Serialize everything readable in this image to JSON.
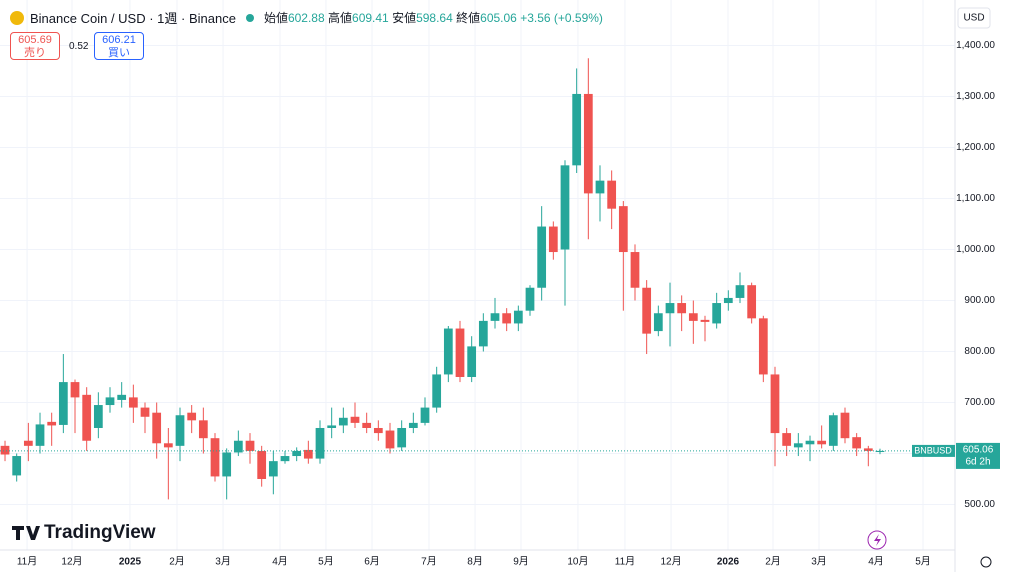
{
  "chart_data": {
    "type": "candlestick",
    "title": "Binance Coin / USD · 1週 · Binance",
    "ohlc_labels": [
      "始値",
      "高値",
      "安値",
      "終値"
    ],
    "change_label": "+3.56 (+0.59%)",
    "sell_price": 605.69,
    "sell_label": "売り",
    "spread": 0.52,
    "buy_price": 606.21,
    "buy_label": "買い",
    "currency": "USD",
    "symbol_tag": "BNBUSD",
    "countdown": "6d 2h",
    "watermark": "TradingView",
    "up_color": "#26a69a",
    "down_color": "#ef5350",
    "grid": true,
    "open": [
      615,
      557,
      625,
      615,
      662,
      656,
      740,
      715,
      650,
      695,
      705,
      710,
      690,
      680,
      620,
      615,
      680,
      665,
      630,
      555,
      602,
      625,
      605,
      555,
      585,
      595,
      607,
      590,
      650,
      655,
      672,
      660,
      650,
      645,
      612,
      650,
      660,
      690,
      755,
      845,
      750,
      810,
      860,
      875,
      855,
      880,
      925,
      1045,
      1000,
      1165,
      1305,
      1110,
      1135,
      1085,
      995,
      925,
      840,
      875,
      895,
      875,
      862,
      855,
      895,
      905,
      930,
      865,
      755,
      640,
      612,
      618,
      625,
      615,
      680,
      632,
      610,
      602.88
    ],
    "high": [
      625,
      600,
      660,
      680,
      680,
      795,
      745,
      730,
      720,
      730,
      740,
      735,
      700,
      700,
      650,
      690,
      695,
      690,
      640,
      610,
      645,
      640,
      615,
      605,
      605,
      612,
      625,
      665,
      690,
      690,
      700,
      680,
      665,
      660,
      665,
      680,
      710,
      770,
      850,
      860,
      830,
      875,
      905,
      885,
      890,
      930,
      1085,
      1055,
      1175,
      1355,
      1375,
      1165,
      1155,
      1095,
      1010,
      940,
      890,
      935,
      910,
      900,
      870,
      915,
      920,
      955,
      935,
      870,
      770,
      650,
      640,
      635,
      655,
      680,
      690,
      640,
      615,
      609.41
    ],
    "low": [
      585,
      545,
      585,
      600,
      615,
      640,
      640,
      605,
      630,
      680,
      690,
      660,
      640,
      590,
      510,
      585,
      640,
      600,
      545,
      510,
      595,
      580,
      535,
      520,
      580,
      585,
      580,
      580,
      630,
      640,
      650,
      640,
      625,
      600,
      605,
      640,
      655,
      680,
      740,
      740,
      740,
      800,
      845,
      840,
      840,
      870,
      900,
      980,
      890,
      1150,
      1020,
      1055,
      1040,
      880,
      900,
      795,
      830,
      810,
      840,
      815,
      820,
      845,
      880,
      895,
      855,
      740,
      575,
      595,
      595,
      585,
      610,
      605,
      620,
      595,
      575,
      598.64
    ],
    "close": [
      598,
      595,
      615,
      657,
      655,
      740,
      710,
      625,
      695,
      710,
      715,
      690,
      672,
      620,
      612,
      675,
      665,
      630,
      555,
      602,
      625,
      605,
      550,
      585,
      595,
      605,
      590,
      650,
      655,
      670,
      660,
      650,
      640,
      610,
      650,
      660,
      690,
      755,
      845,
      750,
      810,
      860,
      875,
      855,
      880,
      925,
      1045,
      995,
      1165,
      1305,
      1110,
      1135,
      1080,
      995,
      925,
      835,
      875,
      895,
      875,
      860,
      858,
      895,
      905,
      930,
      865,
      755,
      640,
      615,
      620,
      625,
      618,
      675,
      630,
      610,
      605,
      605.06
    ],
    "xlim": [
      -0.43,
      81.43
    ],
    "xticks": [
      {
        "value": 1.89,
        "label": "11月"
      },
      {
        "value": 5.74,
        "label": "12月"
      },
      2025,
      {
        "value": 14.74,
        "label": "2月"
      },
      {
        "value": 18.69,
        "label": "3月"
      },
      {
        "value": 23.57,
        "label": "4月"
      },
      {
        "value": 27.51,
        "label": "5月"
      },
      {
        "value": 31.46,
        "label": "6月"
      },
      {
        "value": 36.34,
        "label": "7月"
      },
      {
        "value": 40.29,
        "label": "8月"
      },
      {
        "value": 44.23,
        "label": "9月"
      },
      {
        "value": 49.11,
        "label": "10月"
      },
      {
        "value": 53.14,
        "label": "11月"
      },
      {
        "value": 57.09,
        "label": "12月"
      },
      2026,
      {
        "value": 65.83,
        "label": "2月"
      },
      {
        "value": 69.77,
        "label": "3月"
      },
      {
        "value": 74.66,
        "label": "4月"
      },
      {
        "value": 78.69,
        "label": "5月"
      }
    ],
    "xtick_positions": [
      1.89,
      5.74,
      10.71,
      14.74,
      18.69,
      23.57,
      27.51,
      31.46,
      36.34,
      40.29,
      44.23,
      49.11,
      53.14,
      57.09,
      61.97,
      65.83,
      69.77,
      74.66,
      78.69
    ],
    "ylim": [
      410.76,
      1489.2
    ],
    "yticks": [
      {
        "value": 500,
        "label": "500.00"
      },
      {
        "value": 600,
        "label": "600.00"
      },
      {
        "value": 700,
        "label": "700.00"
      },
      {
        "value": 800,
        "label": "800.00"
      },
      {
        "value": 900,
        "label": "900.00"
      },
      {
        "value": 1000,
        "label": "1,000.00"
      },
      {
        "value": 1100,
        "label": "1,100.00"
      },
      {
        "value": 1200,
        "label": "1,200.00"
      },
      {
        "value": 1300,
        "label": "1,300.00"
      },
      {
        "value": 1400,
        "label": "1,400.00"
      }
    ]
  }
}
